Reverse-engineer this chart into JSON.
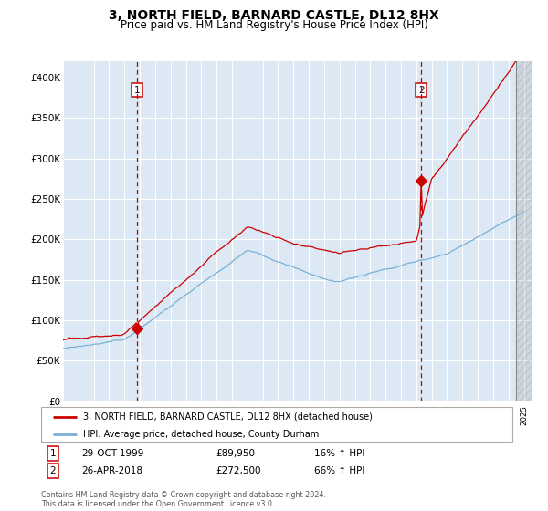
{
  "title": "3, NORTH FIELD, BARNARD CASTLE, DL12 8HX",
  "subtitle": "Price paid vs. HM Land Registry's House Price Index (HPI)",
  "title_fontsize": 10,
  "subtitle_fontsize": 8.5,
  "background_color": "#ffffff",
  "plot_bg_color": "#dce9f5",
  "grid_color": "#ffffff",
  "hpi_color": "#7bafd4",
  "price_color": "#cc0000",
  "sale1_year": 1999.83,
  "sale1_price": 89950,
  "sale2_year": 2018.32,
  "sale2_price": 272500,
  "legend_label_red": "3, NORTH FIELD, BARNARD CASTLE, DL12 8HX (detached house)",
  "legend_label_blue": "HPI: Average price, detached house, County Durham",
  "footnote": "Contains HM Land Registry data © Crown copyright and database right 2024.\nThis data is licensed under the Open Government Licence v3.0.",
  "ylim": [
    0,
    420000
  ],
  "xlim_start": 1995.0,
  "xlim_end": 2025.5,
  "hatch_start": 2024.5,
  "seed": 1234
}
